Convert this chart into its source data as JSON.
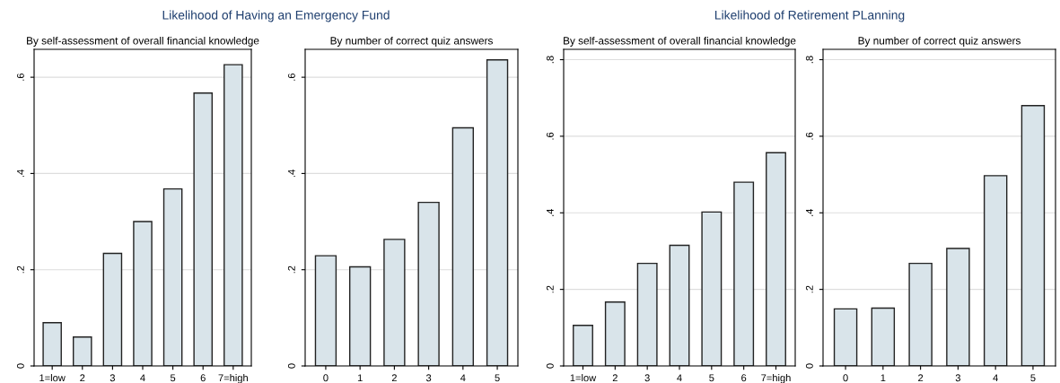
{
  "chart_data": [
    {
      "type": "bar",
      "title": "Likelihood of Having an Emergency Fund",
      "subtitle": "By self-assessment of overall financial knowledge",
      "categories": [
        "1=low",
        "2",
        "3",
        "4",
        "5",
        "6",
        "7=high"
      ],
      "values": [
        0.09,
        0.06,
        0.234,
        0.3,
        0.368,
        0.567,
        0.626
      ],
      "color": "#d9e4ea",
      "ylim": [
        0,
        0.658
      ],
      "yticks": [
        {
          "value": 0,
          "label": "0"
        },
        {
          "value": 0.2,
          "label": ".2"
        },
        {
          "value": 0.4,
          "label": ".4"
        },
        {
          "value": 0.6,
          "label": ".6"
        }
      ],
      "grid": "y"
    },
    {
      "type": "bar",
      "subtitle": "By number of correct quiz answers",
      "categories": [
        "0",
        "1",
        "2",
        "3",
        "4",
        "5"
      ],
      "values": [
        0.229,
        0.206,
        0.263,
        0.34,
        0.495,
        0.636
      ],
      "color": "#d9e4ea",
      "ylim": [
        0,
        0.658
      ],
      "yticks": [
        {
          "value": 0,
          "label": "0"
        },
        {
          "value": 0.2,
          "label": ".2"
        },
        {
          "value": 0.4,
          "label": ".4"
        },
        {
          "value": 0.6,
          "label": ".6"
        }
      ],
      "grid": "y"
    },
    {
      "type": "bar",
      "title": "Likelihood of Retirement PLanning",
      "subtitle": "By self-assessment of overall financial knowledge",
      "categories": [
        "1=low",
        "2",
        "3",
        "4",
        "5",
        "6",
        "7=high"
      ],
      "values": [
        0.106,
        0.167,
        0.268,
        0.315,
        0.402,
        0.48,
        0.557
      ],
      "color": "#d9e4ea",
      "ylim": [
        0,
        0.827
      ],
      "yticks": [
        {
          "value": 0,
          "label": "0"
        },
        {
          "value": 0.2,
          "label": ".2"
        },
        {
          "value": 0.4,
          "label": ".4"
        },
        {
          "value": 0.6,
          "label": ".6"
        },
        {
          "value": 0.8,
          "label": ".8"
        }
      ],
      "grid": "y"
    },
    {
      "type": "bar",
      "subtitle": "By number of correct quiz answers",
      "categories": [
        "0",
        "1",
        "2",
        "3",
        "4",
        "5"
      ],
      "values": [
        0.149,
        0.151,
        0.268,
        0.307,
        0.497,
        0.68
      ],
      "color": "#d9e4ea",
      "ylim": [
        0,
        0.827
      ],
      "yticks": [
        {
          "value": 0,
          "label": "0"
        },
        {
          "value": 0.2,
          "label": ".2"
        },
        {
          "value": 0.4,
          "label": ".4"
        },
        {
          "value": 0.6,
          "label": ".6"
        },
        {
          "value": 0.8,
          "label": ".8"
        }
      ],
      "grid": "y"
    }
  ]
}
